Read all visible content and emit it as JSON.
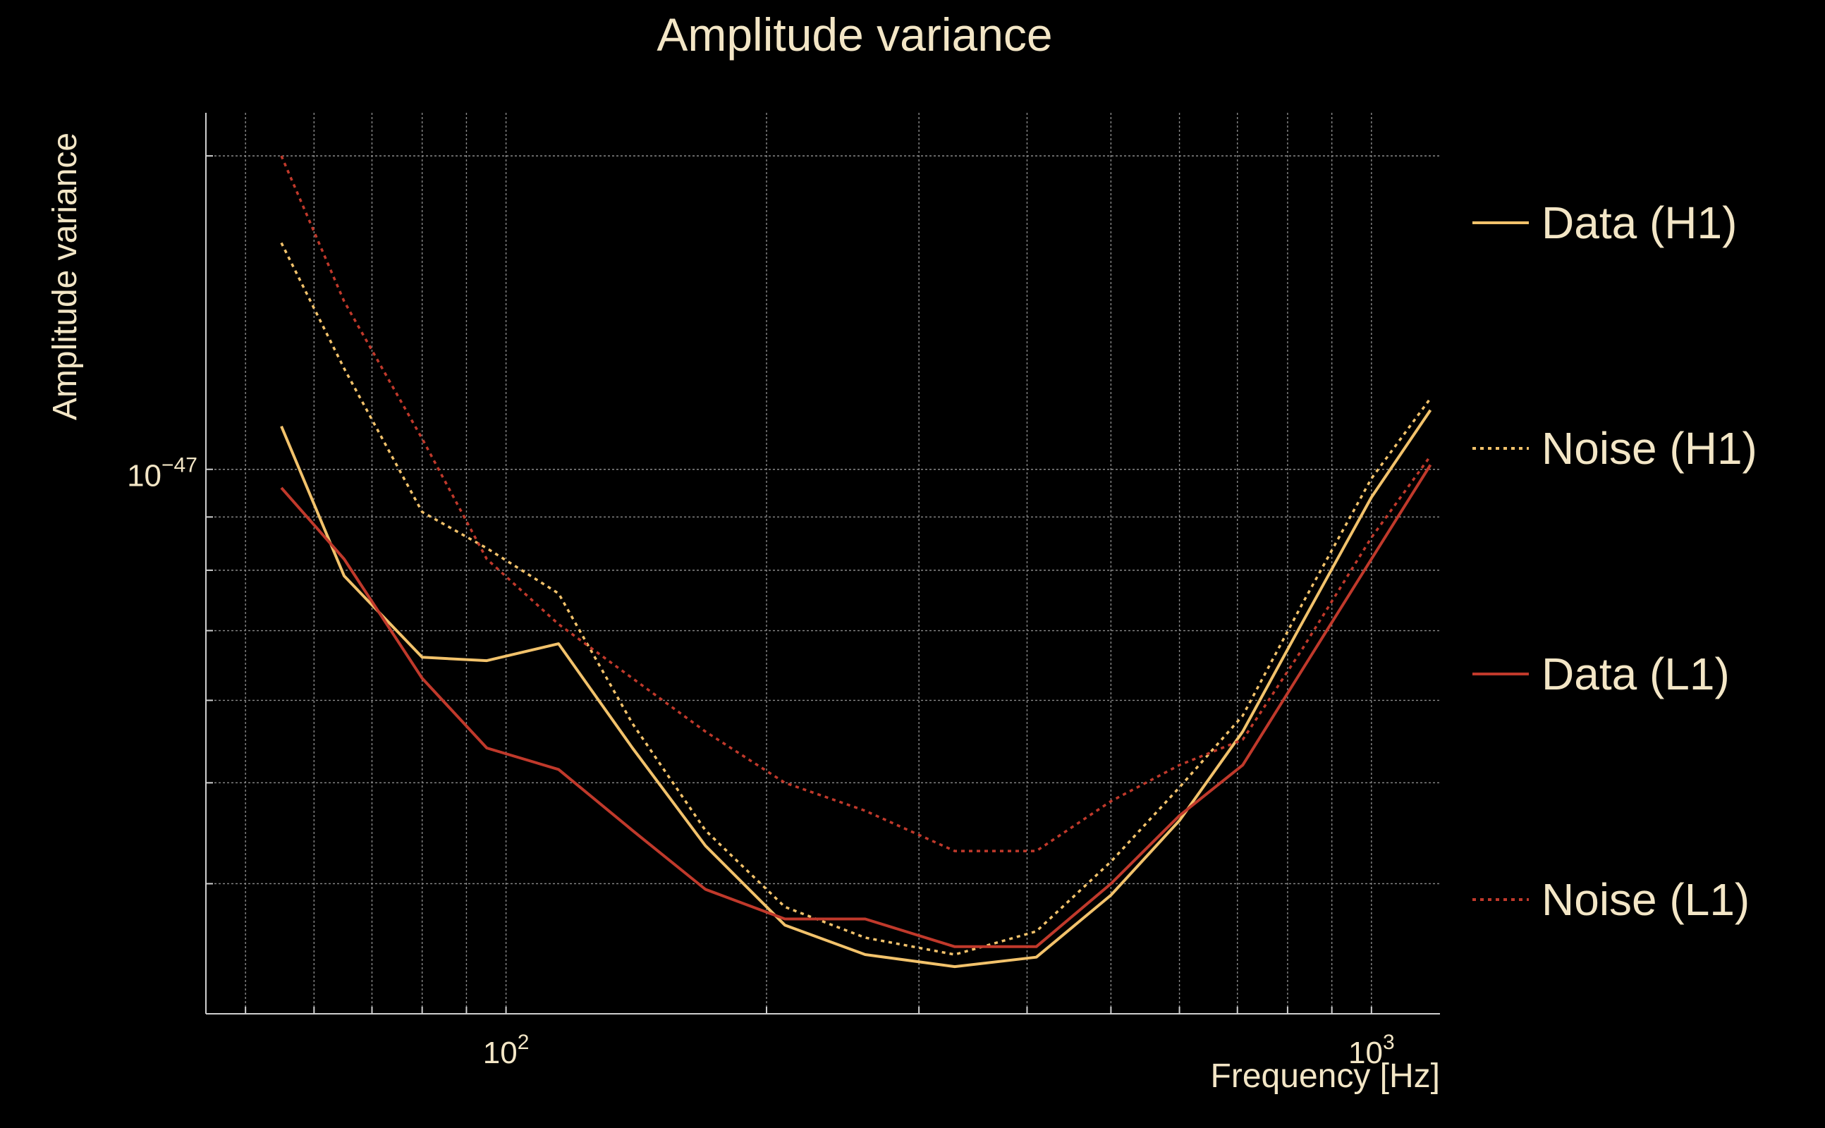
{
  "chart_data": {
    "type": "line",
    "title": "Amplitude variance",
    "xlabel": "Frequency [Hz]",
    "ylabel": "Amplitude variance",
    "xscale": "log",
    "yscale": "log",
    "xlim": [
      45,
      1200
    ],
    "ylim": [
      3e-48,
      2.2e-47
    ],
    "xticks": [
      {
        "value": 100,
        "base": "10",
        "exp": "2"
      },
      {
        "value": 1000,
        "base": "10",
        "exp": "3"
      }
    ],
    "yticks": [
      {
        "value": 1e-47,
        "base": "10",
        "exp": "−47"
      }
    ],
    "x_minor_grid": [
      50,
      60,
      70,
      80,
      90,
      200,
      300,
      400,
      500,
      600,
      700,
      800,
      900
    ],
    "y_minor_grid": [
      4e-48,
      5e-48,
      6e-48,
      7e-48,
      8e-48,
      9e-48,
      2e-47
    ],
    "grid": true,
    "legend_position": "right",
    "x": [
      55,
      65,
      80,
      95,
      115,
      140,
      170,
      210,
      260,
      330,
      410,
      500,
      600,
      710,
      830,
      1000,
      1170
    ],
    "series": [
      {
        "name": "Data (H1)",
        "color": "#f2c26b",
        "style": "solid",
        "values": [
          1.1e-47,
          7.9e-48,
          6.6e-48,
          6.55e-48,
          6.8e-48,
          5.4e-48,
          4.35e-48,
          3.65e-48,
          3.42e-48,
          3.33e-48,
          3.4e-48,
          3.9e-48,
          4.6e-48,
          5.6e-48,
          7.1e-48,
          9.4e-48,
          1.14e-47
        ]
      },
      {
        "name": "Noise (H1)",
        "color": "#f2c26b",
        "style": "dotted",
        "values": [
          1.65e-47,
          1.25e-47,
          9.1e-48,
          8.4e-48,
          7.6e-48,
          5.7e-48,
          4.5e-48,
          3.8e-48,
          3.55e-48,
          3.42e-48,
          3.6e-48,
          4.2e-48,
          4.95e-48,
          5.8e-48,
          7.4e-48,
          9.8e-48,
          1.17e-47
        ]
      },
      {
        "name": "Data (L1)",
        "color": "#c0392b",
        "style": "solid",
        "values": [
          9.6e-48,
          8.2e-48,
          6.3e-48,
          5.4e-48,
          5.15e-48,
          4.5e-48,
          3.95e-48,
          3.7e-48,
          3.7e-48,
          3.48e-48,
          3.48e-48,
          4e-48,
          4.65e-48,
          5.2e-48,
          6.4e-48,
          8.2e-48,
          1.01e-47
        ]
      },
      {
        "name": "Noise (L1)",
        "color": "#c0392b",
        "style": "dotted",
        "values": [
          2e-47,
          1.45e-47,
          1.07e-47,
          8.2e-48,
          7.1e-48,
          6.3e-48,
          5.6e-48,
          5e-48,
          4.7e-48,
          4.3e-48,
          4.3e-48,
          4.8e-48,
          5.2e-48,
          5.5e-48,
          6.7e-48,
          8.6e-48,
          1.03e-47
        ]
      }
    ]
  }
}
